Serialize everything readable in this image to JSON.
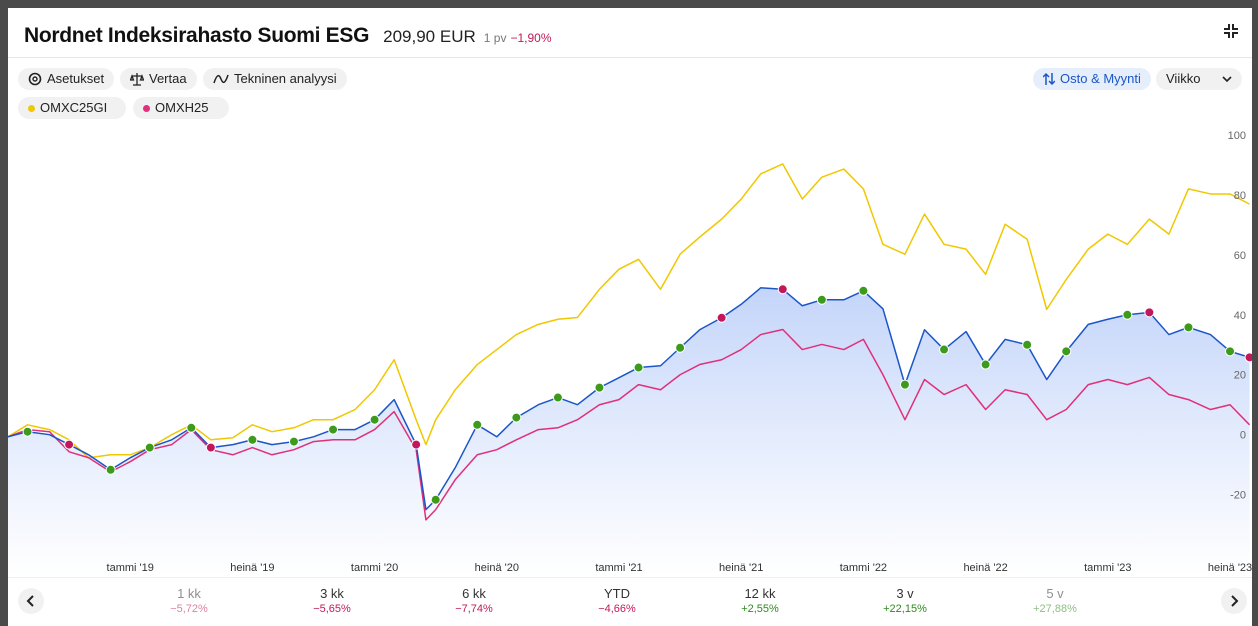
{
  "header": {
    "title": "Nordnet Indeksirahasto Suomi ESG",
    "price": "209,90 EUR",
    "period": "1 pv",
    "change": "−1,90%"
  },
  "toolbar": {
    "buttons": [
      "Asetukset",
      "Vertaa",
      "Tekninen analyysi"
    ],
    "trade": "Osto & Myynti",
    "interval": "Viikko"
  },
  "chart_data": {
    "type": "line",
    "x": [
      2018.5,
      2018.58,
      2018.67,
      2018.75,
      2018.83,
      2018.92,
      2019.0,
      2019.08,
      2019.17,
      2019.25,
      2019.33,
      2019.42,
      2019.5,
      2019.58,
      2019.67,
      2019.75,
      2019.83,
      2019.92,
      2020.0,
      2020.08,
      2020.17,
      2020.21,
      2020.25,
      2020.33,
      2020.42,
      2020.5,
      2020.58,
      2020.67,
      2020.75,
      2020.83,
      2020.92,
      2021.0,
      2021.08,
      2021.17,
      2021.25,
      2021.33,
      2021.42,
      2021.5,
      2021.58,
      2021.67,
      2021.75,
      2021.83,
      2021.92,
      2022.0,
      2022.08,
      2022.17,
      2022.25,
      2022.33,
      2022.42,
      2022.5,
      2022.58,
      2022.67,
      2022.75,
      2022.83,
      2022.92,
      2023.0,
      2023.08,
      2023.17,
      2023.25,
      2023.33,
      2023.42,
      2023.5,
      2023.58
    ],
    "series": [
      {
        "color": "#1a56c8",
        "area": true,
        "values": [
          -0.7,
          1,
          0,
          -3.3,
          -6.7,
          -11.7,
          -7.7,
          -4.3,
          -1.7,
          2.3,
          -4.3,
          -3.3,
          -1.7,
          -3.3,
          -2.3,
          -0.7,
          1.7,
          1.7,
          5,
          11.7,
          -3.3,
          -25,
          -21.7,
          -11,
          3.3,
          -0.7,
          5.7,
          10,
          12.4,
          10,
          15.7,
          19,
          22.4,
          23,
          29,
          35,
          39,
          43.5,
          49,
          48.5,
          43,
          45,
          45,
          48,
          42,
          16.7,
          35,
          28.4,
          34.4,
          23.4,
          31.8,
          30,
          18.4,
          27.8,
          36.8,
          38.5,
          40,
          40.8,
          33.4,
          35.8,
          33.4,
          27.8,
          25.8
        ]
      },
      {
        "name": "OMXC25GI",
        "color": "#f0c800",
        "values": [
          -0.7,
          3.3,
          1.7,
          -1.7,
          -7.7,
          -6.7,
          -6.7,
          -4.3,
          0,
          3.3,
          -1.7,
          -1,
          3.3,
          1,
          2.3,
          5,
          5,
          8.4,
          15,
          25,
          5,
          -3.3,
          5,
          15,
          23.4,
          28.4,
          33.4,
          36.8,
          38.5,
          39.1,
          48.5,
          55.2,
          58.5,
          48.5,
          60.2,
          65.9,
          71.9,
          78.6,
          87,
          90.3,
          78.6,
          85.9,
          88.6,
          82,
          63.5,
          60.2,
          73.6,
          63.5,
          61.9,
          53.5,
          70.2,
          65.2,
          41.8,
          51.8,
          61.9,
          66.9,
          63.5,
          71.9,
          66.9,
          82,
          80.3,
          80.3,
          76.9
        ]
      },
      {
        "name": "OMXH25",
        "color": "#e0307a",
        "values": [
          -0.7,
          1.7,
          1,
          -5.7,
          -7.7,
          -12.4,
          -9,
          -5,
          -3.3,
          1.7,
          -5,
          -6.7,
          -4.3,
          -6.7,
          -5,
          -2.3,
          -1.7,
          -1.7,
          1.7,
          7.7,
          -5,
          -28.4,
          -25,
          -15,
          -6.7,
          -5,
          -1.7,
          1.7,
          2.3,
          5,
          10,
          11.7,
          16.7,
          15,
          20,
          23.4,
          25,
          28.4,
          33.4,
          35.1,
          28.4,
          30.1,
          28.4,
          31.8,
          20,
          5,
          18.4,
          13.4,
          16.7,
          8.4,
          15,
          13.4,
          5,
          8.4,
          16.7,
          18.4,
          16.7,
          19.1,
          13.4,
          11.7,
          8.4,
          10,
          3.3
        ]
      }
    ],
    "markers": [
      {
        "color": "#3d9a1c",
        "x": [
          2018.58,
          2018.92,
          2019.08,
          2019.25,
          2019.5,
          2019.67,
          2019.83,
          2020.0,
          2020.25,
          2020.42,
          2020.58,
          2020.75,
          2020.92,
          2021.08,
          2021.25,
          2021.83,
          2022.0,
          2022.17,
          2022.33,
          2022.5,
          2022.67,
          2022.83,
          2023.08,
          2023.33,
          2023.5
        ],
        "values": [
          1,
          -11.7,
          -4.3,
          2.3,
          -1.7,
          -2.3,
          1.7,
          5,
          -21.7,
          3.3,
          5.7,
          12.4,
          15.7,
          22.4,
          29,
          45,
          48,
          16.7,
          28.4,
          23.4,
          30,
          27.8,
          40,
          35.8,
          27.8
        ]
      },
      {
        "color": "#c2185b",
        "x": [
          2018.75,
          2019.33,
          2020.17,
          2021.42,
          2021.67,
          2023.17,
          2023.58
        ],
        "values": [
          -3.3,
          -4.3,
          -3.3,
          39,
          48.5,
          40.8,
          25.8
        ]
      }
    ],
    "xlim": [
      2018.5,
      2023.59
    ],
    "xticks": [
      {
        "value": 2019.0,
        "label": "tammi '19"
      },
      {
        "value": 2019.5,
        "label": "heinä '19"
      },
      {
        "value": 2020.0,
        "label": "tammi '20"
      },
      {
        "value": 2020.5,
        "label": "heinä '20"
      },
      {
        "value": 2021.0,
        "label": "tammi '21"
      },
      {
        "value": 2021.5,
        "label": "heinä '21"
      },
      {
        "value": 2022.0,
        "label": "tammi '22"
      },
      {
        "value": 2022.5,
        "label": "heinä '22"
      },
      {
        "value": 2023.0,
        "label": "tammi '23"
      },
      {
        "value": 2023.5,
        "label": "heinä '23"
      }
    ],
    "ylim": [
      -46.8,
      103.3
    ],
    "yticks": [
      -20,
      0,
      20,
      40,
      60,
      80,
      100
    ]
  },
  "periods": [
    {
      "label": "1 kk",
      "change": "−5,72%"
    },
    {
      "label": "3 kk",
      "change": "−5,65%"
    },
    {
      "label": "6 kk",
      "change": "−7,74%"
    },
    {
      "label": "YTD",
      "change": "−4,66%"
    },
    {
      "label": "12 kk",
      "change": "+2,55%"
    },
    {
      "label": "3 v",
      "change": "+22,15%"
    },
    {
      "label": "5 v",
      "change": "+27,88%"
    }
  ]
}
